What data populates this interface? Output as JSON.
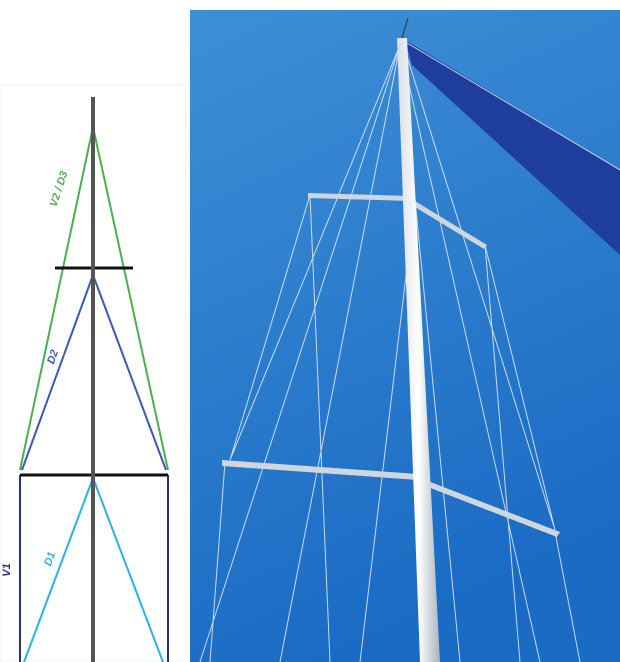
{
  "diagram": {
    "labels": {
      "upper": "V2 / D3",
      "middle": "D2",
      "lower": "D1",
      "vertical": "V1"
    }
  }
}
